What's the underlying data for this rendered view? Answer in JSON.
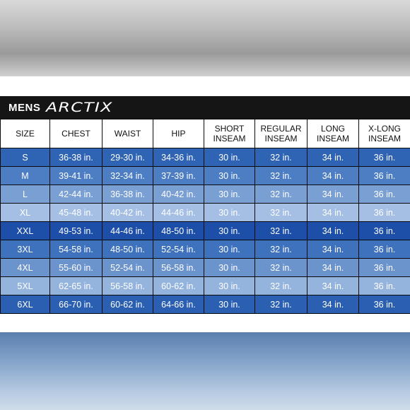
{
  "header": {
    "section_label": "MENS",
    "brand": "ARCTIX"
  },
  "columns": [
    "SIZE",
    "CHEST",
    "WAIST",
    "HIP",
    "SHORT INSEAM",
    "REGULAR INSEAM",
    "LONG INSEAM",
    "X-LONG INSEAM"
  ],
  "column_lines": [
    [
      "SIZE"
    ],
    [
      "CHEST"
    ],
    [
      "WAIST"
    ],
    [
      "HIP"
    ],
    [
      "SHORT",
      "INSEAM"
    ],
    [
      "REGULAR",
      "INSEAM"
    ],
    [
      "LONG",
      "INSEAM"
    ],
    [
      "X-LONG",
      "INSEAM"
    ]
  ],
  "rows": [
    {
      "color": "#2f63b4",
      "cells": [
        "S",
        "36-38 in.",
        "29-30 in.",
        "34-36 in.",
        "30 in.",
        "32 in.",
        "34 in.",
        "36 in."
      ]
    },
    {
      "color": "#4d7ec4",
      "cells": [
        "M",
        "39-41 in.",
        "32-34 in.",
        "37-39 in.",
        "30 in.",
        "32 in.",
        "34 in.",
        "36 in."
      ]
    },
    {
      "color": "#7a9fd2",
      "cells": [
        "L",
        "42-44 in.",
        "36-38 in.",
        "40-42 in.",
        "30 in.",
        "32 in.",
        "34 in.",
        "36 in."
      ]
    },
    {
      "color": "#a4bfe3",
      "cells": [
        "XL",
        "45-48 in.",
        "40-42 in.",
        "44-46 in.",
        "30 in.",
        "32 in.",
        "34 in.",
        "36 in."
      ]
    },
    {
      "color": "#1d4fa8",
      "cells": [
        "XXL",
        "49-53 in.",
        "44-46 in.",
        "48-50 in.",
        "30 in.",
        "32 in.",
        "34 in.",
        "36 in."
      ]
    },
    {
      "color": "#3f72bc",
      "cells": [
        "3XL",
        "54-58 in.",
        "48-50 in.",
        "52-54 in.",
        "30 in.",
        "32 in.",
        "34 in.",
        "36 in."
      ]
    },
    {
      "color": "#6c94cc",
      "cells": [
        "4XL",
        "55-60 in.",
        "52-54 in.",
        "56-58 in.",
        "30 in.",
        "32 in.",
        "34 in.",
        "36 in."
      ]
    },
    {
      "color": "#94b4dd",
      "cells": [
        "5XL",
        "62-65 in.",
        "56-58 in.",
        "60-62 in.",
        "30 in.",
        "32 in.",
        "34 in.",
        "36 in."
      ]
    },
    {
      "color": "#2b5fb2",
      "cells": [
        "6XL",
        "66-70 in.",
        "60-62 in.",
        "64-66 in.",
        "30 in.",
        "32 in.",
        "34 in.",
        "36 in."
      ]
    }
  ]
}
